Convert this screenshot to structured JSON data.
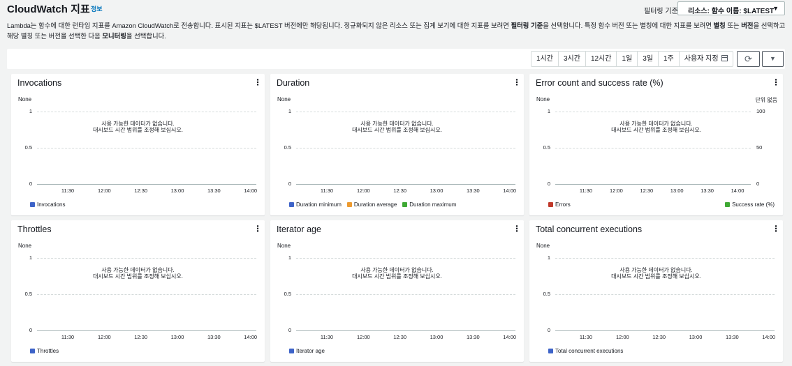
{
  "header": {
    "title": "CloudWatch 지표",
    "info": "정보",
    "filter_label": "필터링 기준",
    "filter_value": "리소스: 함수 이름: $LATEST"
  },
  "description": {
    "part1": "Lambda는 함수에 대한 런타임 지표를 Amazon CloudWatch로 전송합니다. 표시된 지표는 $LATEST 버전에만 해당됩니다. 정규화되지 않은 리소스 또는 집계 보기에 대한 지표를 보려면 ",
    "bold1": "필터링 기준",
    "part2": "을 선택합니다. 특정 함수 버전 또는 별칭에 대한 지표를 보려면 ",
    "bold2": "별칭",
    "part3": " 또는 ",
    "bold3": "버전",
    "part4": "을 선택하고 해당 별칭 또는 버전을 선택한 다음 ",
    "bold4": "모니터링",
    "part5": "을 선택합니다."
  },
  "toolbar": {
    "ranges": [
      "1시간",
      "3시간",
      "12시간",
      "1일",
      "3일",
      "1주",
      "사용자 지정"
    ]
  },
  "common": {
    "none_label": "None",
    "no_data_line1": "사용 가능한 데이터가 없습니다.",
    "no_data_line2": "대시보드 시간 범위를 조정해 보십시오.",
    "y_ticks": [
      "1",
      "0.5",
      "0"
    ],
    "x_ticks": [
      "11:30",
      "12:00",
      "12:30",
      "13:00",
      "13:30",
      "14:00"
    ]
  },
  "widgets": [
    {
      "title": "Invocations",
      "legend": [
        {
          "name": "Invocations",
          "color": "#3d63c8"
        }
      ]
    },
    {
      "title": "Duration",
      "legend": [
        {
          "name": "Duration minimum",
          "color": "#3d63c8"
        },
        {
          "name": "Duration average",
          "color": "#ec9a2f"
        },
        {
          "name": "Duration maximum",
          "color": "#3fa934"
        }
      ]
    },
    {
      "title": "Error count and success rate (%)",
      "right_unit": "단위 없음",
      "right_ticks": [
        "100",
        "50",
        "0"
      ],
      "legend": [
        {
          "name": "Errors",
          "color": "#c0392b"
        }
      ],
      "legend_right": {
        "name": "Success rate (%)",
        "color": "#3fa934"
      }
    },
    {
      "title": "Throttles",
      "legend": [
        {
          "name": "Throttles",
          "color": "#3d63c8"
        }
      ]
    },
    {
      "title": "Iterator age",
      "legend": [
        {
          "name": "Iterator age",
          "color": "#3d63c8"
        }
      ]
    },
    {
      "title": "Total concurrent executions",
      "legend": [
        {
          "name": "Total concurrent executions",
          "color": "#3d63c8"
        }
      ]
    }
  ]
}
